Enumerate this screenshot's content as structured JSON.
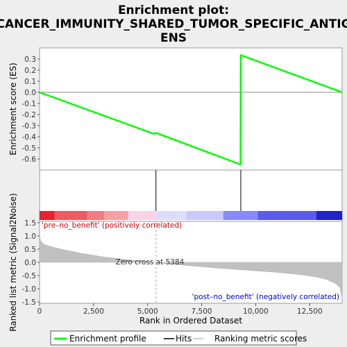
{
  "chart_data": {
    "type": "line",
    "title_lines": [
      "Enrichment plot:",
      "CANCER_IMMUNITY_SHARED_TUMOR_SPECIFIC_ANTIG",
      "ENS"
    ],
    "top_panel": {
      "ylabel": "Enrichment score (ES)",
      "ylim": [
        -0.7,
        0.4
      ],
      "yticks": [
        "0.3",
        "0.2",
        "0.1",
        "0.0",
        "-0.1",
        "-0.2",
        "-0.3",
        "-0.4",
        "-0.5",
        "-0.6"
      ],
      "series": {
        "name": "Enrichment profile",
        "color": "#00ff00",
        "x": [
          0,
          5300,
          5384,
          9300,
          9310,
          14000
        ],
        "y": [
          0.0,
          -0.375,
          -0.365,
          -0.65,
          0.335,
          0.0
        ]
      }
    },
    "hits": {
      "name": "Hits",
      "positions": [
        5384,
        9310
      ]
    },
    "bottom_panel": {
      "ylabel": "Ranked list metric (Signal2Noise)",
      "ylim": [
        -1.55,
        1.55
      ],
      "yticks": [
        "1.5",
        "1.0",
        "0.5",
        "0.0",
        "-0.5",
        "-1.0",
        "-1.5"
      ],
      "series_name": "Ranking metric scores",
      "metric_curve": {
        "x": [
          0,
          50,
          200,
          500,
          1000,
          2000,
          3000,
          4000,
          5000,
          5384,
          6000,
          7000,
          8000,
          9000,
          10000,
          11000,
          12000,
          12800,
          13300,
          13700,
          13900,
          14000
        ],
        "y": [
          1.0,
          0.8,
          0.68,
          0.6,
          0.5,
          0.33,
          0.2,
          0.1,
          0.03,
          0.0,
          -0.06,
          -0.13,
          -0.2,
          -0.26,
          -0.32,
          -0.38,
          -0.46,
          -0.55,
          -0.65,
          -0.8,
          -0.95,
          -1.35
        ]
      },
      "annotations": {
        "pos": "'pre–no_benefit' (positively correlated)",
        "neg": "'post–no_benefit' (negatively correlated)",
        "zero": "Zero cross at 5384"
      },
      "zero_cross": 5384
    },
    "xlabel": "Rank in Ordered Dataset",
    "xlim": [
      0,
      14000
    ],
    "xticks": [
      "0",
      "2,500",
      "5,000",
      "7,500",
      "10,000",
      "12,500"
    ],
    "xtick_values": [
      0,
      2500,
      5000,
      7500,
      10000,
      12500
    ],
    "ranking_bar": {
      "segments": [
        {
          "from": 0,
          "to": 700,
          "color": "#e8202a"
        },
        {
          "from": 700,
          "to": 2200,
          "color": "#ee5a62"
        },
        {
          "from": 2200,
          "to": 3000,
          "color": "#f27c83"
        },
        {
          "from": 3000,
          "to": 4100,
          "color": "#f7a0a4"
        },
        {
          "from": 4100,
          "to": 5384,
          "color": "#fcd2e8"
        },
        {
          "from": 5384,
          "to": 6800,
          "color": "#dcdcff"
        },
        {
          "from": 6800,
          "to": 8500,
          "color": "#c8c8ff"
        },
        {
          "from": 8500,
          "to": 10100,
          "color": "#8888ff"
        },
        {
          "from": 10100,
          "to": 12800,
          "color": "#5a5aee"
        },
        {
          "from": 12800,
          "to": 14000,
          "color": "#2222cc"
        }
      ]
    },
    "legend": {
      "items": [
        {
          "label": "Enrichment profile",
          "color": "#00ff00"
        },
        {
          "label": "Hits",
          "color": "#000000"
        },
        {
          "label": "Ranking metric scores",
          "color": "#c0c0c0"
        }
      ]
    },
    "colors": {
      "pos_text": "#cc0000",
      "neg_text": "#0000cc"
    }
  }
}
